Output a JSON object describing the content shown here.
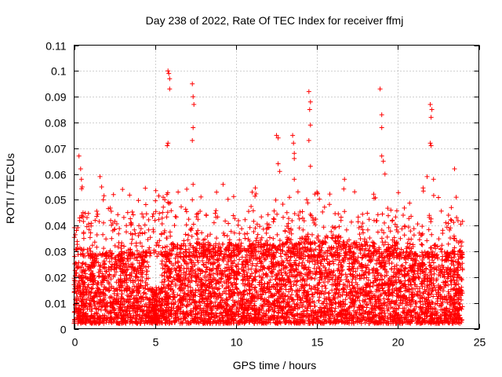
{
  "chart_data": {
    "type": "scatter",
    "title": "Day 238 of 2022, Rate Of TEC Index for receiver ffmj",
    "xlabel": "GPS time / hours",
    "ylabel": "ROTI / TECUs",
    "xlim": [
      0,
      25
    ],
    "ylim": [
      0,
      0.11
    ],
    "x_ticks": [
      "0",
      "5",
      "10",
      "15",
      "20",
      "25"
    ],
    "y_ticks": [
      "0",
      "0.01",
      "0.02",
      "0.03",
      "0.04",
      "0.05",
      "0.06",
      "0.07",
      "0.08",
      "0.09",
      "0.1",
      "0.11"
    ],
    "x_tick_values": [
      0,
      5,
      10,
      15,
      20,
      25
    ],
    "y_tick_values": [
      0,
      0.01,
      0.02,
      0.03,
      0.04,
      0.05,
      0.06,
      0.07,
      0.08,
      0.09,
      0.1,
      0.11
    ],
    "grid": true,
    "marker": "+",
    "marker_color": "#ff0000",
    "series": [
      {
        "name": "ROTI",
        "x_range": [
          0,
          24
        ],
        "bulk_range": [
          0.002,
          0.03
        ],
        "highlights": [
          {
            "x": 0.3,
            "y": 0.067
          },
          {
            "x": 0.4,
            "y": 0.062
          },
          {
            "x": 0.45,
            "y": 0.058
          },
          {
            "x": 0.5,
            "y": 0.055
          },
          {
            "x": 0.55,
            "y": 0.045
          },
          {
            "x": 0.6,
            "y": 0.035
          },
          {
            "x": 1.6,
            "y": 0.059
          },
          {
            "x": 1.7,
            "y": 0.055
          },
          {
            "x": 1.8,
            "y": 0.05
          },
          {
            "x": 3.5,
            "y": 0.041
          },
          {
            "x": 4.0,
            "y": 0.04
          },
          {
            "x": 5.5,
            "y": 0.051
          },
          {
            "x": 5.6,
            "y": 0.05
          },
          {
            "x": 5.8,
            "y": 0.1
          },
          {
            "x": 5.85,
            "y": 0.099
          },
          {
            "x": 5.9,
            "y": 0.097
          },
          {
            "x": 5.9,
            "y": 0.093
          },
          {
            "x": 5.8,
            "y": 0.072
          },
          {
            "x": 5.75,
            "y": 0.071
          },
          {
            "x": 7.3,
            "y": 0.095
          },
          {
            "x": 7.35,
            "y": 0.09
          },
          {
            "x": 7.4,
            "y": 0.087
          },
          {
            "x": 7.35,
            "y": 0.078
          },
          {
            "x": 7.3,
            "y": 0.073
          },
          {
            "x": 7.35,
            "y": 0.056
          },
          {
            "x": 7.3,
            "y": 0.05
          },
          {
            "x": 8.8,
            "y": 0.053
          },
          {
            "x": 9.2,
            "y": 0.056
          },
          {
            "x": 11.0,
            "y": 0.053
          },
          {
            "x": 12.5,
            "y": 0.075
          },
          {
            "x": 12.6,
            "y": 0.074
          },
          {
            "x": 12.6,
            "y": 0.064
          },
          {
            "x": 12.7,
            "y": 0.061
          },
          {
            "x": 13.5,
            "y": 0.075
          },
          {
            "x": 13.55,
            "y": 0.072
          },
          {
            "x": 13.6,
            "y": 0.068
          },
          {
            "x": 13.6,
            "y": 0.066
          },
          {
            "x": 13.6,
            "y": 0.058
          },
          {
            "x": 14.5,
            "y": 0.092
          },
          {
            "x": 14.6,
            "y": 0.088
          },
          {
            "x": 14.55,
            "y": 0.085
          },
          {
            "x": 14.6,
            "y": 0.079
          },
          {
            "x": 14.5,
            "y": 0.073
          },
          {
            "x": 14.6,
            "y": 0.063
          },
          {
            "x": 15.0,
            "y": 0.053
          },
          {
            "x": 16.7,
            "y": 0.058
          },
          {
            "x": 18.9,
            "y": 0.093
          },
          {
            "x": 19.0,
            "y": 0.083
          },
          {
            "x": 19.0,
            "y": 0.078
          },
          {
            "x": 19.0,
            "y": 0.067
          },
          {
            "x": 19.1,
            "y": 0.065
          },
          {
            "x": 19.2,
            "y": 0.06
          },
          {
            "x": 22.0,
            "y": 0.087
          },
          {
            "x": 22.1,
            "y": 0.085
          },
          {
            "x": 22.05,
            "y": 0.082
          },
          {
            "x": 22.0,
            "y": 0.072
          },
          {
            "x": 22.05,
            "y": 0.071
          },
          {
            "x": 21.8,
            "y": 0.059
          },
          {
            "x": 22.2,
            "y": 0.058
          },
          {
            "x": 23.5,
            "y": 0.062
          },
          {
            "x": 23.3,
            "y": 0.047
          },
          {
            "x": 23.6,
            "y": 0.051
          }
        ]
      }
    ]
  }
}
